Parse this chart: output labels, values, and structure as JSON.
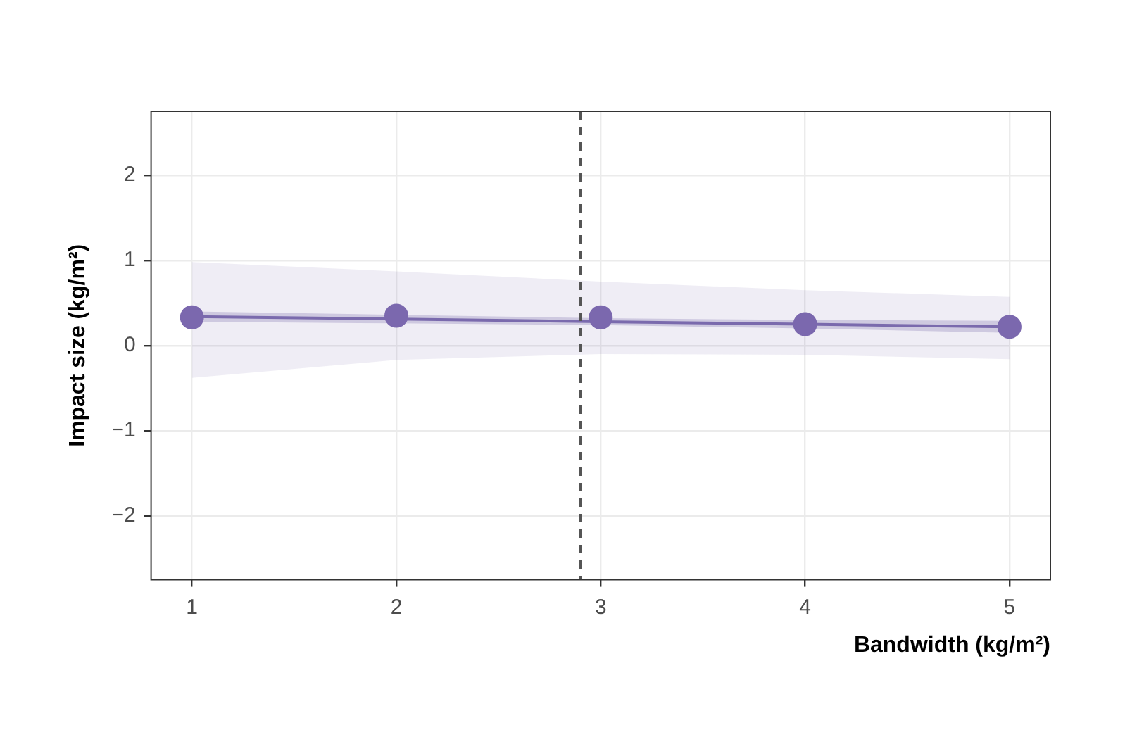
{
  "chart_data": {
    "type": "scatter",
    "xlabel": "Bandwidth (kg/m²)",
    "ylabel": "Impact size (kg/m²)",
    "x": [
      1,
      2,
      3,
      4,
      5
    ],
    "series": [
      {
        "marker": "circle",
        "color": "#7b68ae",
        "values": [
          0.33,
          0.35,
          0.33,
          0.25,
          0.22
        ],
        "lower": [
          -0.38,
          -0.17,
          -0.1,
          -0.11,
          -0.16
        ],
        "upper": [
          0.98,
          0.87,
          0.75,
          0.65,
          0.57
        ]
      },
      {
        "type": "line",
        "marker": "none",
        "color": "#7a6aad",
        "values": [
          0.34,
          0.31,
          0.28,
          0.25,
          0.22
        ],
        "lower": [
          0.28,
          0.26,
          0.24,
          0.2,
          0.15
        ],
        "upper": [
          0.4,
          0.36,
          0.32,
          0.3,
          0.29
        ]
      }
    ],
    "xlim": [
      0.8,
      5.2
    ],
    "xticks": [
      1,
      2,
      3,
      4,
      5
    ],
    "ylim": [
      -2.75,
      2.75
    ],
    "yticks": [
      {
        "value": -2,
        "label": "−2"
      },
      {
        "value": -1,
        "label": "−1"
      },
      0,
      1,
      2
    ],
    "ref_lines": [
      {
        "axis": "x",
        "value": 2.9,
        "color": "#555555",
        "line_style": "dashed"
      }
    ],
    "grid": true,
    "legend": false
  }
}
